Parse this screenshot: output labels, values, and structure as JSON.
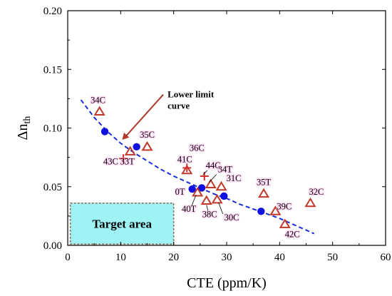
{
  "chart_data": {
    "type": "scatter",
    "title": "",
    "xlabel": "CTE (ppm/K)",
    "ylabel": {
      "main": "Δn",
      "sub": "th"
    },
    "xlim": [
      0,
      60
    ],
    "ylim": [
      0,
      0.2
    ],
    "x_ticks": [
      "0",
      "10",
      "20",
      "30",
      "40",
      "50",
      "60"
    ],
    "y_ticks": [
      "0.00",
      "0.05",
      "0.10",
      "0.15",
      "0.20"
    ],
    "grid": false,
    "colors": {
      "circle": "#1010e0",
      "triangle": "#c0392b",
      "cross": "#d32f2f",
      "curve": "#1a2fd6",
      "arrow": "#b03a2e",
      "target_fill": "#9ff3f5",
      "target_border": "#8a7360",
      "label_glow": "#ff9de6"
    },
    "series": [
      {
        "marker": "circle",
        "points": [
          {
            "x": 7.0,
            "y": 0.097
          },
          {
            "x": 13.0,
            "y": 0.084
          },
          {
            "x": 23.5,
            "y": 0.048
          },
          {
            "x": 25.3,
            "y": 0.049
          },
          {
            "x": 29.5,
            "y": 0.042
          },
          {
            "x": 36.5,
            "y": 0.029
          }
        ]
      },
      {
        "marker": "triangle",
        "points": [
          {
            "x": 6.0,
            "y": 0.114,
            "label": "34C"
          },
          {
            "x": 15.0,
            "y": 0.084,
            "label": "35C"
          },
          {
            "x": 11.8,
            "y": 0.08,
            "label": "33T"
          },
          {
            "x": 22.5,
            "y": 0.064,
            "label": "41C"
          },
          {
            "x": 27.0,
            "y": 0.052,
            "label": "34T"
          },
          {
            "x": 29.0,
            "y": 0.05,
            "label": "31C"
          },
          {
            "x": 24.5,
            "y": 0.045,
            "label": "40T"
          },
          {
            "x": 26.2,
            "y": 0.038,
            "label": "38C"
          },
          {
            "x": 28.2,
            "y": 0.039,
            "label": "30C"
          },
          {
            "x": 37.0,
            "y": 0.044,
            "label": "35T"
          },
          {
            "x": 39.2,
            "y": 0.029,
            "label": "39C"
          },
          {
            "x": 41.0,
            "y": 0.018,
            "label": "42C"
          },
          {
            "x": 45.8,
            "y": 0.036,
            "label": "32C"
          }
        ]
      },
      {
        "marker": "cross",
        "points": [
          {
            "x": 10.5,
            "y": 0.074,
            "label": "43C"
          },
          {
            "x": 22.5,
            "y": 0.066,
            "label": "36C"
          },
          {
            "x": 25.8,
            "y": 0.059,
            "label": "44C"
          }
        ]
      }
    ],
    "unmarked_labels": [
      {
        "text": "0T",
        "x": 23.5,
        "y": 0.048
      }
    ],
    "curve": {
      "name": "Lower limit curve",
      "style": "dashed",
      "points": [
        [
          2.5,
          0.124
        ],
        [
          5,
          0.109
        ],
        [
          7.5,
          0.097
        ],
        [
          10,
          0.087
        ],
        [
          12.5,
          0.079
        ],
        [
          15,
          0.072
        ],
        [
          17.5,
          0.065
        ],
        [
          20,
          0.059
        ],
        [
          22.5,
          0.054
        ],
        [
          25,
          0.049
        ],
        [
          27.5,
          0.044
        ],
        [
          30,
          0.04
        ],
        [
          32.5,
          0.035
        ],
        [
          35,
          0.031
        ],
        [
          37.5,
          0.027
        ],
        [
          40,
          0.023
        ],
        [
          42.5,
          0.018
        ],
        [
          45,
          0.013
        ],
        [
          46.5,
          0.01
        ]
      ]
    },
    "annotations": {
      "curve_note": {
        "lines": [
          "Lower limit",
          "curve"
        ],
        "anchor": {
          "x": 17.5,
          "y": 0.12
        },
        "arrow_to": {
          "x": 10.3,
          "y": 0.09
        }
      },
      "target": {
        "label": "Target area",
        "x0": 0.5,
        "x1": 20.0,
        "y0": 0.001,
        "y1": 0.036
      }
    }
  }
}
